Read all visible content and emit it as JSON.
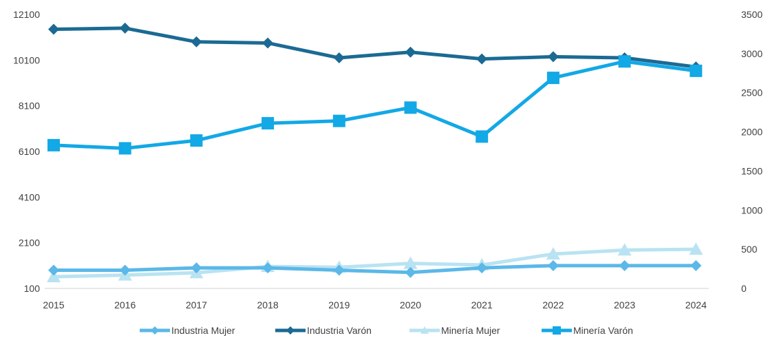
{
  "chart_data": {
    "type": "line",
    "x": [
      "2015",
      "2016",
      "2017",
      "2018",
      "2019",
      "2020",
      "2021",
      "2022",
      "2023",
      "2024"
    ],
    "y_left_ticks": [
      "12100",
      "10100",
      "8100",
      "6100",
      "4100",
      "2100",
      "100"
    ],
    "y_left_lim": [
      100,
      12100
    ],
    "y_right_ticks": [
      "3500",
      "3000",
      "2500",
      "2000",
      "1500",
      "1000",
      "500",
      "0"
    ],
    "y_right_lim": [
      0,
      3500
    ],
    "legend_position": "bottom",
    "grid": false,
    "series": [
      {
        "name": "Industria Mujer",
        "axis": "left",
        "color": "#5bb8e8",
        "marker": "diamond",
        "values": [
          900,
          900,
          1000,
          1000,
          900,
          800,
          1000,
          1100,
          1100,
          1100
        ]
      },
      {
        "name": "Industria Varón",
        "axis": "left",
        "color": "#1b6a93",
        "marker": "diamond",
        "values": [
          11450,
          11500,
          10900,
          10850,
          10200,
          10450,
          10150,
          10250,
          10200,
          9800
        ]
      },
      {
        "name": "Minería  Mujer",
        "axis": "right",
        "color": "#b9e3f2",
        "marker": "triangle",
        "values": [
          150,
          170,
          200,
          280,
          270,
          320,
          300,
          440,
          490,
          500
        ]
      },
      {
        "name": "Minería  Varón",
        "axis": "right",
        "color": "#13a8e6",
        "marker": "square",
        "values": [
          1830,
          1790,
          1890,
          2110,
          2140,
          2310,
          1940,
          2690,
          2900,
          2780
        ]
      }
    ]
  }
}
